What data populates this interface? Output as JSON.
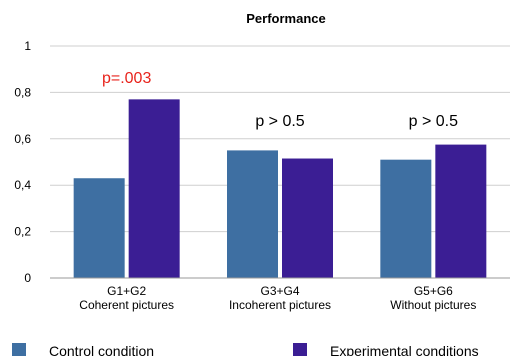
{
  "chart_data": {
    "type": "bar",
    "title": "Performance",
    "categories": [
      {
        "line1": "G1+G2",
        "line2": "Coherent pictures"
      },
      {
        "line1": "G3+G4",
        "line2": "Incoherent pictures"
      },
      {
        "line1": "G5+G6",
        "line2": "Without pictures"
      }
    ],
    "series": [
      {
        "name": "Control condition",
        "values": [
          0.43,
          0.55,
          0.51
        ],
        "color": "#3e6fa2"
      },
      {
        "name": "Experimental conditions",
        "values": [
          0.77,
          0.515,
          0.575
        ],
        "color": "#3b1e94"
      }
    ],
    "ylim": [
      0,
      1
    ],
    "yticks": [
      {
        "value": 0,
        "label": "0"
      },
      {
        "value": 0.2,
        "label": "0,2"
      },
      {
        "value": 0.4,
        "label": "0,4"
      },
      {
        "value": 0.6,
        "label": "0,6"
      },
      {
        "value": 0.8,
        "label": "0,8"
      },
      {
        "value": 1,
        "label": "1"
      }
    ],
    "annotations": [
      {
        "category": 0,
        "text": "p=.003",
        "color": "#e8231c",
        "y_value": 0.84
      },
      {
        "category": 1,
        "text": "p > 0.5",
        "color": "#000000",
        "y_value": 0.655
      },
      {
        "category": 2,
        "text": "p > 0.5",
        "color": "#000000",
        "y_value": 0.655
      }
    ],
    "grid": true,
    "legend_position": "bottom"
  }
}
